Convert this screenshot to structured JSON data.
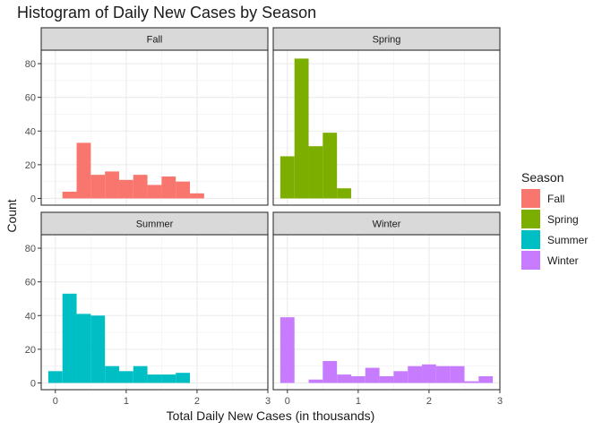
{
  "chart_data": {
    "type": "bar",
    "title": "Histogram of Daily New Cases by Season",
    "xlabel": "Total Daily New Cases (in thousands)",
    "ylabel": "Count",
    "xlim": [
      -0.2,
      3.0
    ],
    "ylim": [
      -4,
      88
    ],
    "x_ticks": [
      0,
      1,
      2,
      3
    ],
    "y_ticks": [
      0,
      20,
      40,
      60,
      80
    ],
    "bin_width": 0.2,
    "grid": true,
    "legend": {
      "title": "Season",
      "position": "right",
      "entries": [
        {
          "label": "Fall",
          "color": "#F8766D"
        },
        {
          "label": "Spring",
          "color": "#7CAE00"
        },
        {
          "label": "Summer",
          "color": "#00BFC4"
        },
        {
          "label": "Winter",
          "color": "#C77CFF"
        }
      ]
    },
    "panels": [
      {
        "name": "Fall",
        "color": "#F8766D",
        "bins": [
          {
            "x": 0.2,
            "count": 4
          },
          {
            "x": 0.4,
            "count": 33
          },
          {
            "x": 0.6,
            "count": 14
          },
          {
            "x": 0.8,
            "count": 16
          },
          {
            "x": 1.0,
            "count": 11
          },
          {
            "x": 1.2,
            "count": 14
          },
          {
            "x": 1.4,
            "count": 8
          },
          {
            "x": 1.6,
            "count": 13
          },
          {
            "x": 1.8,
            "count": 10
          },
          {
            "x": 2.0,
            "count": 3
          }
        ]
      },
      {
        "name": "Spring",
        "color": "#7CAE00",
        "bins": [
          {
            "x": 0.0,
            "count": 25
          },
          {
            "x": 0.2,
            "count": 83
          },
          {
            "x": 0.4,
            "count": 31
          },
          {
            "x": 0.6,
            "count": 39
          },
          {
            "x": 0.8,
            "count": 6
          }
        ]
      },
      {
        "name": "Summer",
        "color": "#00BFC4",
        "bins": [
          {
            "x": 0.0,
            "count": 7
          },
          {
            "x": 0.2,
            "count": 53
          },
          {
            "x": 0.4,
            "count": 41
          },
          {
            "x": 0.6,
            "count": 40
          },
          {
            "x": 0.8,
            "count": 10
          },
          {
            "x": 1.0,
            "count": 7
          },
          {
            "x": 1.2,
            "count": 10
          },
          {
            "x": 1.4,
            "count": 5
          },
          {
            "x": 1.6,
            "count": 5
          },
          {
            "x": 1.8,
            "count": 6
          }
        ]
      },
      {
        "name": "Winter",
        "color": "#C77CFF",
        "bins": [
          {
            "x": 0.0,
            "count": 39
          },
          {
            "x": 0.4,
            "count": 2
          },
          {
            "x": 0.6,
            "count": 13
          },
          {
            "x": 0.8,
            "count": 5
          },
          {
            "x": 1.0,
            "count": 4
          },
          {
            "x": 1.2,
            "count": 9
          },
          {
            "x": 1.4,
            "count": 4
          },
          {
            "x": 1.6,
            "count": 7
          },
          {
            "x": 1.8,
            "count": 10
          },
          {
            "x": 2.0,
            "count": 11
          },
          {
            "x": 2.2,
            "count": 10
          },
          {
            "x": 2.4,
            "count": 10
          },
          {
            "x": 2.6,
            "count": 1
          },
          {
            "x": 2.8,
            "count": 4
          }
        ]
      }
    ]
  }
}
